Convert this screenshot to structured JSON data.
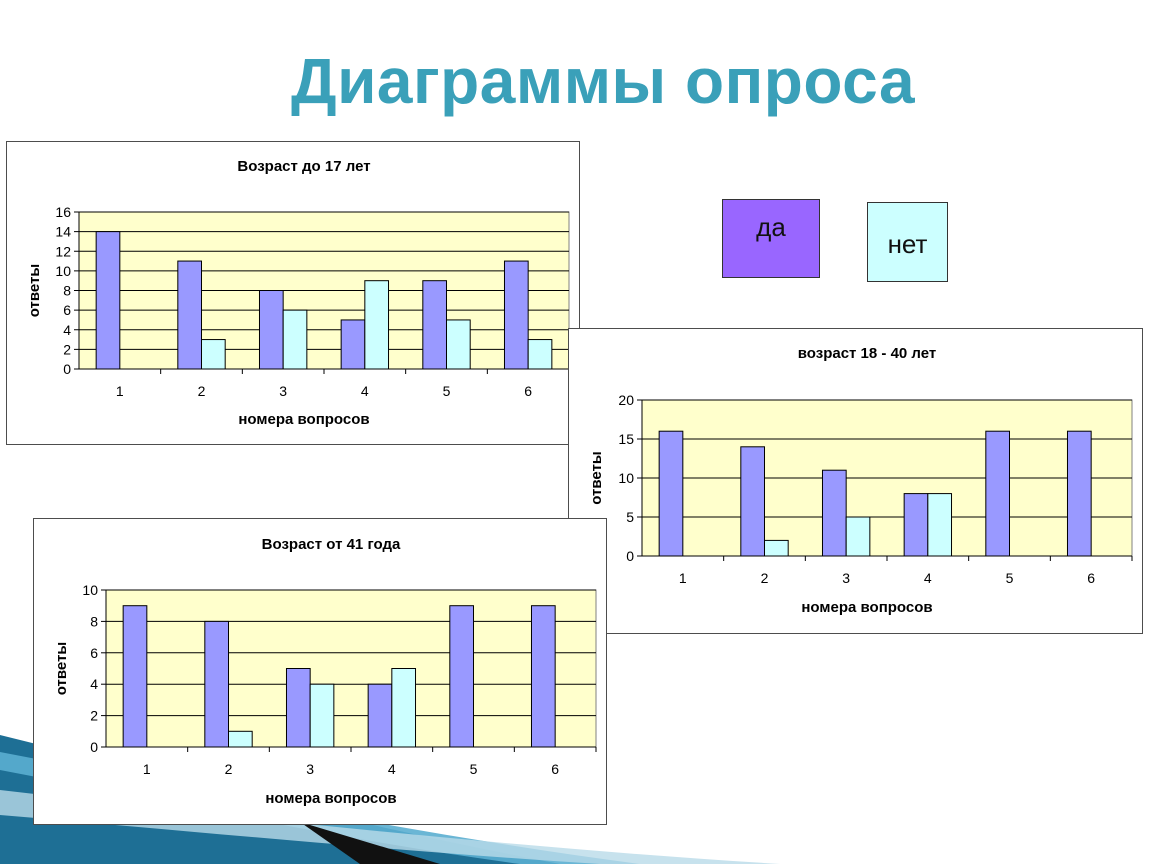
{
  "page": {
    "title": "Диаграммы опроса",
    "colors": {
      "title": "#3aa0b9",
      "yes": "#9999ff",
      "no": "#ccffff",
      "plot_bg": "#ffffcc"
    }
  },
  "legend": {
    "yes": {
      "label": "да",
      "color": "#9966ff"
    },
    "no": {
      "label": "нет",
      "color": "#ccffff"
    }
  },
  "chart_data": [
    {
      "type": "bar",
      "title": "Возраст до 17 лет",
      "xlabel": "номера вопросов",
      "ylabel": "ответы",
      "categories": [
        "1",
        "2",
        "3",
        "4",
        "5",
        "6"
      ],
      "ylim": [
        0,
        16
      ],
      "yticks": [
        0,
        2,
        4,
        6,
        8,
        10,
        12,
        14,
        16
      ],
      "grid": true,
      "series": [
        {
          "values": [
            14,
            11,
            8,
            5,
            9,
            11
          ],
          "color": "#9999ff"
        },
        {
          "values": [
            0,
            3,
            6,
            9,
            5,
            3
          ],
          "color": "#ccffff"
        }
      ]
    },
    {
      "type": "bar",
      "title": "возраст 18 -  40 лет",
      "xlabel": "номера вопросов",
      "ylabel": "ответы",
      "categories": [
        "1",
        "2",
        "3",
        "4",
        "5",
        "6"
      ],
      "ylim": [
        0,
        20
      ],
      "yticks": [
        0,
        5,
        10,
        15,
        20
      ],
      "grid": true,
      "series": [
        {
          "values": [
            16,
            14,
            11,
            8,
            16,
            16
          ],
          "color": "#9999ff"
        },
        {
          "values": [
            0,
            2,
            5,
            8,
            0,
            0
          ],
          "color": "#ccffff"
        }
      ]
    },
    {
      "type": "bar",
      "title": "Возраст от 41 года",
      "xlabel": "номера вопросов",
      "ylabel": "ответы",
      "categories": [
        "1",
        "2",
        "3",
        "4",
        "5",
        "6"
      ],
      "ylim": [
        0,
        10
      ],
      "yticks": [
        0,
        2,
        4,
        6,
        8,
        10
      ],
      "grid": true,
      "series": [
        {
          "values": [
            9,
            8,
            5,
            4,
            9,
            9
          ],
          "color": "#9999ff"
        },
        {
          "values": [
            0,
            1,
            4,
            5,
            0,
            0
          ],
          "color": "#ccffff"
        }
      ]
    }
  ]
}
